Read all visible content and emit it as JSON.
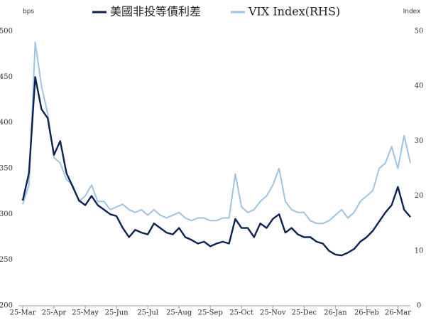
{
  "chart_data": {
    "type": "line",
    "unit_left": "bps",
    "unit_right": "Index",
    "categories": [
      "25-Mar",
      null,
      null,
      null,
      null,
      "25-Apr",
      null,
      null,
      null,
      null,
      "25-May",
      null,
      null,
      null,
      null,
      "25-Jun",
      null,
      null,
      null,
      null,
      "25-Jul",
      null,
      null,
      null,
      null,
      "25-Aug",
      null,
      null,
      null,
      null,
      "25-Sep",
      null,
      null,
      null,
      null,
      "25-Oct",
      null,
      null,
      null,
      null,
      "25-Nov",
      null,
      null,
      null,
      null,
      "25-Dec",
      null,
      null,
      null,
      null,
      "26-Jan",
      null,
      null,
      null,
      null,
      "26-Feb",
      null,
      null,
      null,
      null,
      "26-Mar",
      null,
      null
    ],
    "series": [
      {
        "name": "美國非投等債利差",
        "color": "#0c2252",
        "values": [
          315,
          345,
          450,
          415,
          405,
          365,
          380,
          345,
          330,
          315,
          310,
          320,
          310,
          305,
          300,
          298,
          285,
          275,
          283,
          280,
          278,
          290,
          285,
          280,
          278,
          285,
          275,
          272,
          268,
          270,
          265,
          268,
          270,
          268,
          295,
          285,
          285,
          275,
          290,
          285,
          295,
          300,
          280,
          285,
          278,
          275,
          275,
          270,
          268,
          260,
          256,
          255,
          258,
          262,
          270,
          275,
          282,
          292,
          302,
          310,
          330,
          305,
          297
        ]
      },
      {
        "name": "VIX Index(RHS)",
        "color": "#9ec3e4",
        "axis": "y2",
        "values": [
          18.5,
          22,
          48,
          40,
          35,
          27,
          26,
          23,
          22,
          19,
          20,
          22,
          19,
          19,
          17.5,
          18,
          18.5,
          17.5,
          17,
          17.5,
          16.5,
          17.5,
          16.5,
          16,
          16.5,
          17,
          16,
          15.5,
          16,
          16,
          15.5,
          15.5,
          16,
          16,
          24,
          18,
          17,
          17.5,
          19,
          20,
          22,
          25,
          19,
          17.5,
          17,
          17,
          15.5,
          15,
          15,
          15.5,
          16.5,
          17.5,
          16,
          17,
          19,
          20,
          21,
          25,
          26,
          29,
          25,
          31,
          26
        ]
      }
    ],
    "ylim": [
      200,
      500
    ],
    "yticks": [
      200,
      250,
      300,
      350,
      400,
      450,
      500
    ],
    "y2lim": [
      0,
      50
    ],
    "y2ticks": [
      0,
      10,
      20,
      30,
      40,
      50
    ],
    "grid": false,
    "legend": "top"
  }
}
